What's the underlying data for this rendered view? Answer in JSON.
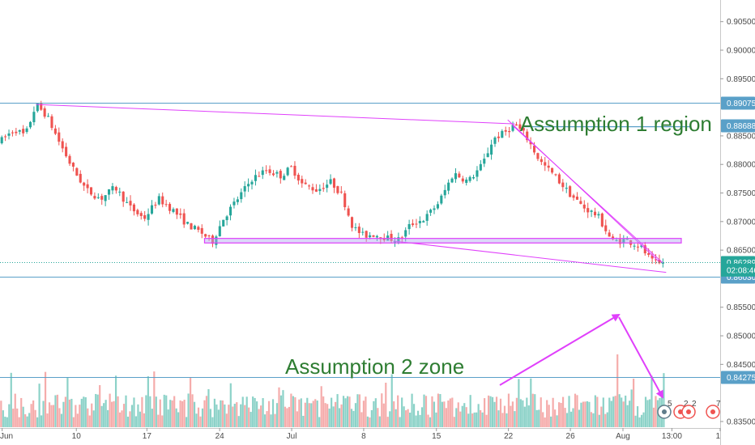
{
  "chart_data": {
    "type": "candlestick",
    "y_axis": {
      "range": [
        0.834,
        0.9085
      ],
      "ticks": [
        {
          "value": 0.905,
          "label": "0.90500"
        },
        {
          "value": 0.9,
          "label": "0.90000"
        },
        {
          "value": 0.895,
          "label": "0.89500"
        },
        {
          "value": 0.885,
          "label": "0.88500"
        },
        {
          "value": 0.88,
          "label": "0.88000"
        },
        {
          "value": 0.875,
          "label": "0.87500"
        },
        {
          "value": 0.87,
          "label": "0.87000"
        },
        {
          "value": 0.865,
          "label": "0.86500"
        },
        {
          "value": 0.855,
          "label": "0.85500"
        },
        {
          "value": 0.85,
          "label": "0.85000"
        },
        {
          "value": 0.845,
          "label": "0.84500"
        },
        {
          "value": 0.835,
          "label": "0.83500"
        }
      ]
    },
    "x_axis": {
      "range": [
        0,
        100
      ],
      "ticks": [
        {
          "value": 0.3,
          "label": "Jun"
        },
        {
          "value": 10.6,
          "label": "10"
        },
        {
          "value": 20.4,
          "label": "17"
        },
        {
          "value": 30.5,
          "label": "24"
        },
        {
          "value": 40.5,
          "label": "Jul"
        },
        {
          "value": 50.5,
          "label": "8"
        },
        {
          "value": 60.6,
          "label": "15"
        },
        {
          "value": 70.6,
          "label": "22"
        },
        {
          "value": 79.2,
          "label": "26"
        },
        {
          "value": 86.5,
          "label": "Aug"
        },
        {
          "value": 93.3,
          "label": "13:00"
        },
        {
          "value": 100,
          "label": "1"
        }
      ]
    },
    "price_path": [
      [
        0,
        0.884
      ],
      [
        2,
        0.8862
      ],
      [
        3.5,
        0.885
      ],
      [
        5,
        0.8905
      ],
      [
        6.5,
        0.8885
      ],
      [
        8,
        0.8845
      ],
      [
        10,
        0.8795
      ],
      [
        12,
        0.8755
      ],
      [
        14,
        0.874
      ],
      [
        16,
        0.876
      ],
      [
        18,
        0.8725
      ],
      [
        20,
        0.8705
      ],
      [
        22,
        0.874
      ],
      [
        24,
        0.872
      ],
      [
        26,
        0.8695
      ],
      [
        28,
        0.868
      ],
      [
        29.5,
        0.8665
      ],
      [
        31,
        0.8705
      ],
      [
        33,
        0.874
      ],
      [
        35,
        0.8775
      ],
      [
        37,
        0.879
      ],
      [
        39,
        0.878
      ],
      [
        40.5,
        0.8795
      ],
      [
        42,
        0.8765
      ],
      [
        44,
        0.8755
      ],
      [
        46,
        0.877
      ],
      [
        47.5,
        0.8745
      ],
      [
        49,
        0.869
      ],
      [
        50.5,
        0.8675
      ],
      [
        52,
        0.8678
      ],
      [
        54,
        0.867
      ],
      [
        55.5,
        0.8668
      ],
      [
        57,
        0.8695
      ],
      [
        59,
        0.8705
      ],
      [
        61,
        0.8735
      ],
      [
        63,
        0.8785
      ],
      [
        65,
        0.877
      ],
      [
        67,
        0.88
      ],
      [
        68.5,
        0.8845
      ],
      [
        70,
        0.8855
      ],
      [
        71.5,
        0.887
      ],
      [
        73,
        0.885
      ],
      [
        75,
        0.8805
      ],
      [
        77,
        0.878
      ],
      [
        79,
        0.875
      ],
      [
        81,
        0.8725
      ],
      [
        83,
        0.871
      ],
      [
        85,
        0.8665
      ],
      [
        87,
        0.8668
      ],
      [
        89,
        0.8655
      ],
      [
        90.5,
        0.863
      ],
      [
        91.5,
        0.8625
      ],
      [
        92.3,
        0.863
      ]
    ],
    "volume_spikes": [
      {
        "x": 85.7,
        "height": 0.9
      },
      {
        "x": 9.4,
        "height": 0.62
      },
      {
        "x": 26.5,
        "height": 0.62
      },
      {
        "x": 53.5,
        "height": 0.55
      },
      {
        "x": 87.9,
        "height": 0.6
      }
    ],
    "levels": [
      {
        "price": 0.89075,
        "label": "0.89075",
        "style": "line",
        "tag_color": "#5aa0c8"
      },
      {
        "price": 0.88688,
        "label": "0.88688",
        "style": "tag-only",
        "tag_color": "#5aa0c8"
      },
      {
        "price": 0.86289,
        "label": "0.86289",
        "style": "dotted",
        "tag_color": "#26a69a"
      },
      {
        "price": 0.8603,
        "label": "0.86030",
        "style": "line",
        "tag_color": "#5aa0c8"
      },
      {
        "price": 0.84275,
        "label": "0.84275",
        "style": "line",
        "tag_color": "#5aa0c8"
      }
    ],
    "countdown": {
      "label": "02:08:46",
      "price": 0.8615
    },
    "annotations": [
      {
        "text": "Assumption 1 region",
        "x": 72.2,
        "price": 0.887
      },
      {
        "text": "Assumption 2 zone",
        "x": 39.6,
        "price": 0.8445
      }
    ],
    "event_badges": [
      "5",
      "2",
      "2",
      "7"
    ],
    "colors": {
      "up": "#26a69a",
      "down": "#ef5350",
      "trendline": "#e040fb",
      "level": "#5aa0c8",
      "annotation": "#2e7d32"
    }
  }
}
